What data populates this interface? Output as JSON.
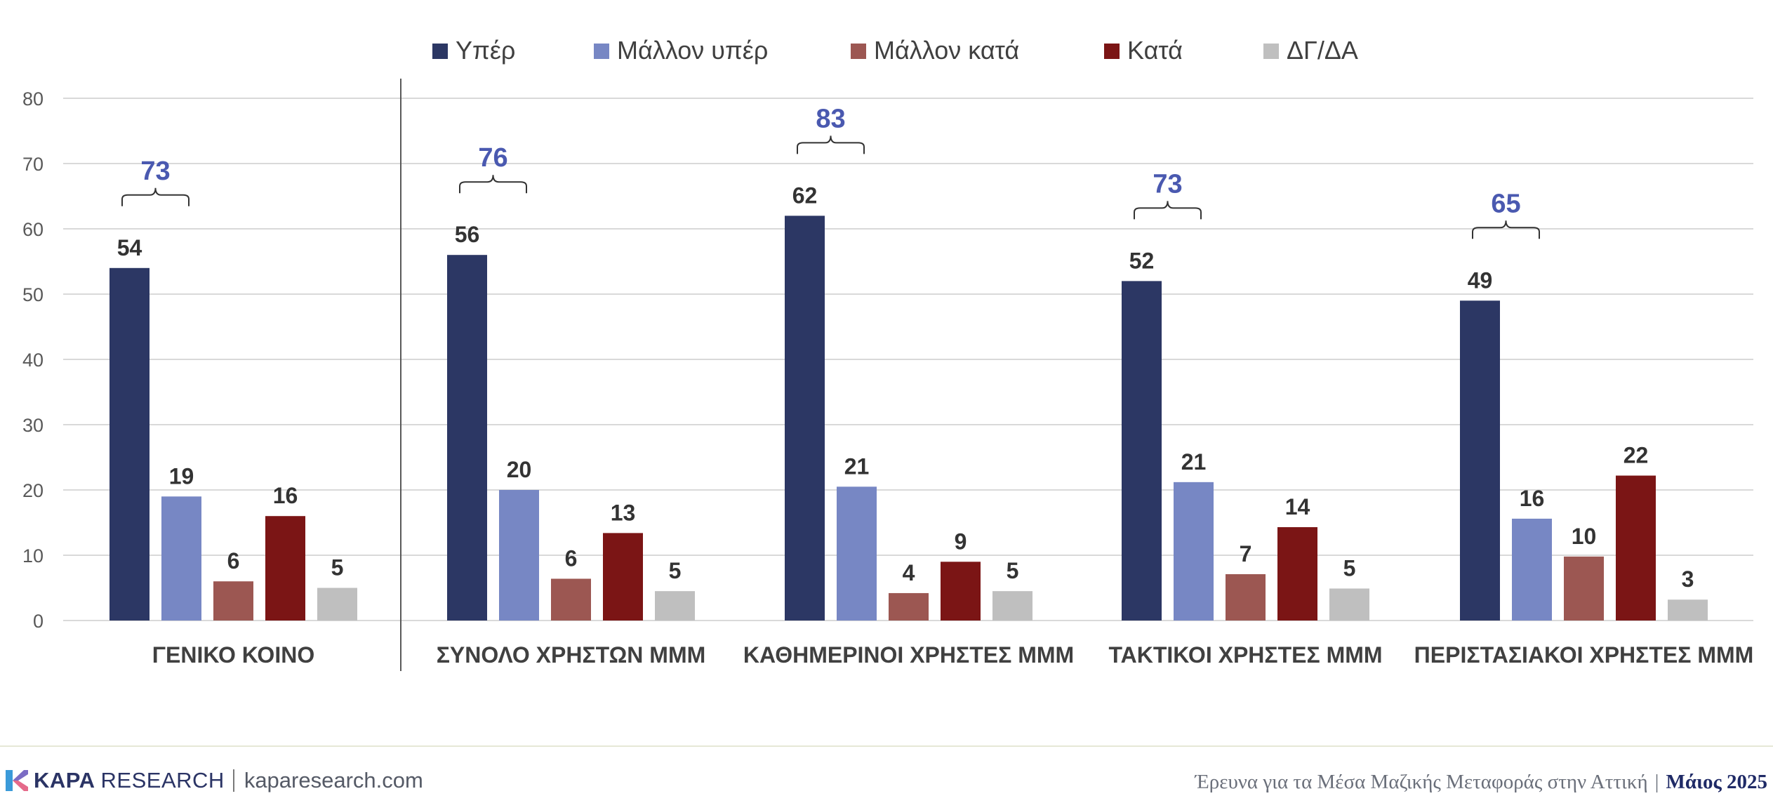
{
  "chart_data": {
    "type": "bar",
    "categories": [
      "ΓΕΝΙΚΟ ΚΟΙΝΟ",
      "ΣΥΝΟΛΟ ΧΡΗΣΤΩΝ ΜΜΜ",
      "ΚΑΘΗΜΕΡΙΝΟΙ ΧΡΗΣΤΕΣ ΜΜΜ",
      "ΤΑΚΤΙΚΟΙ ΧΡΗΣΤΕΣ ΜΜΜ",
      "ΠΕΡΙΣΤΑΣΙΑΚΟΙ ΧΡΗΣΤΕΣ ΜΜΜ"
    ],
    "series": [
      {
        "name": "Υπέρ",
        "color": "#2c3764",
        "values": [
          54,
          56,
          62,
          52,
          49
        ],
        "labels": [
          "54",
          "56",
          "62",
          "52",
          "49"
        ]
      },
      {
        "name": "Μάλλον υπέρ",
        "color": "#7787c4",
        "values": [
          19,
          20,
          20.5,
          21.2,
          15.6
        ],
        "labels": [
          "19",
          "20",
          "21",
          "21",
          "16"
        ]
      },
      {
        "name": "Μάλλον κατά",
        "color": "#9c5752",
        "values": [
          6,
          6.4,
          4.2,
          7.1,
          9.8
        ],
        "labels": [
          "6",
          "6",
          "4",
          "7",
          "10"
        ]
      },
      {
        "name": "Κατά",
        "color": "#7b1515",
        "values": [
          16,
          13.4,
          9,
          14.3,
          22.2
        ],
        "labels": [
          "16",
          "13",
          "9",
          "14",
          "22"
        ]
      },
      {
        "name": "ΔΓ/ΔΑ",
        "color": "#bfbfbf",
        "values": [
          5,
          4.5,
          4.5,
          4.9,
          3.2
        ],
        "labels": [
          "5",
          "5",
          "5",
          "5",
          "3"
        ]
      }
    ],
    "bracket_totals": [
      "73",
      "76",
      "83",
      "73",
      "65"
    ],
    "bracket_color": "#4a59b0",
    "ylim": [
      0,
      80
    ],
    "yticks": [
      0,
      10,
      20,
      30,
      40,
      50,
      60,
      70,
      80
    ],
    "grid": true,
    "legend": "top-center",
    "title": "",
    "xlabel": "",
    "ylabel": ""
  },
  "footer": {
    "brand_kapa": "KAPA",
    "brand_research": "RESEARCH",
    "website": "kaparesearch.com",
    "survey_title": "Έρευνα για τα Μέσα Μαζικής Μεταφοράς στην Αττική",
    "separator": "|",
    "date": "Μάιος 2025"
  }
}
